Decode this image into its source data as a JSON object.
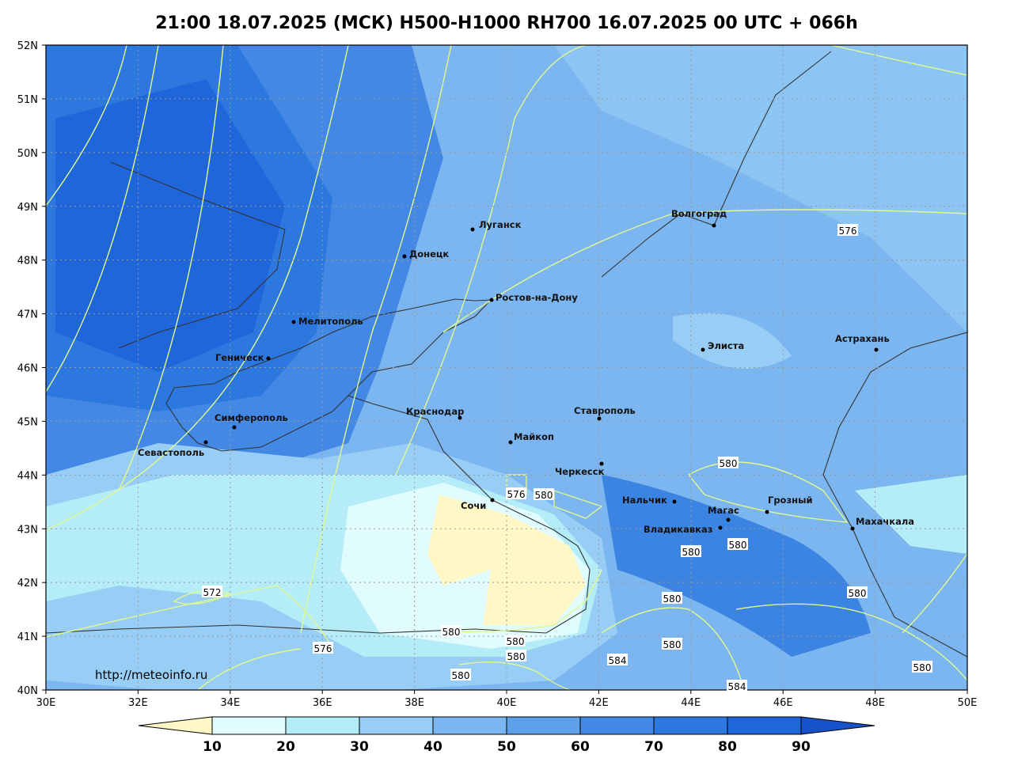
{
  "title": "21:00 18.07.2025 (МСК) H500-H1000 RH700 16.07.2025 00 UTC + 066h",
  "lat_labels": [
    "52N",
    "51N",
    "50N",
    "49N",
    "48N",
    "47N",
    "46N",
    "45N",
    "44N",
    "43N",
    "42N",
    "41N",
    "40N"
  ],
  "lon_labels": [
    "30E",
    "32E",
    "34E",
    "36E",
    "38E",
    "40E",
    "42E",
    "44E",
    "46E",
    "48E",
    "50E"
  ],
  "cities": [
    "Луганск",
    "Донецк",
    "Ростов-на-Дону",
    "Мелитополь",
    "Геническ",
    "Симферополь",
    "Севастополь",
    "Краснодар",
    "Майкоп",
    "Ставрополь",
    "Черкесск",
    "Сочи",
    "Нальчик",
    "Магас",
    "Владикавказ",
    "Грозный",
    "Махачкала",
    "Элиста",
    "Астрахань",
    "Волгоград"
  ],
  "contour_labels": [
    "576",
    "580",
    "576",
    "580",
    "580",
    "580",
    "572",
    "580",
    "580",
    "580",
    "576",
    "580",
    "580",
    "580",
    "584",
    "580",
    "580",
    "584"
  ],
  "source": "http://meteoinfo.ru",
  "colorbar": {
    "ticks": [
      10,
      20,
      30,
      40,
      50,
      60,
      70,
      80,
      90
    ],
    "colors": [
      "#fff8c6",
      "#e0fcff",
      "#b4ecf8",
      "#98cef6",
      "#7cb6f0",
      "#5ea0ea",
      "#4288e4",
      "#2c78de",
      "#1f66da",
      "#1852c8"
    ]
  }
}
